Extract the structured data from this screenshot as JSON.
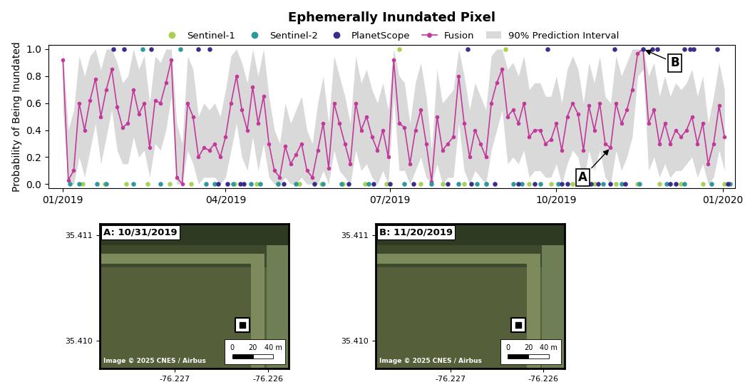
{
  "chart_data": {
    "type": "line",
    "title": "Ephemerally Inundated Pixel",
    "y_label": "Probability of Being Inundated",
    "legend": "top",
    "grid": false,
    "xlim": [
      "2018-12-24",
      "2020-01-08"
    ],
    "xticks": [
      {
        "value": "2019-01-01",
        "label": "01/2019"
      },
      {
        "value": "2019-04-01",
        "label": "04/2019"
      },
      {
        "value": "2019-07-01",
        "label": "07/2019"
      },
      {
        "value": "2019-10-01",
        "label": "10/2019"
      },
      {
        "value": "2020-01-01",
        "label": "01/2020"
      }
    ],
    "ylim": [
      -0.03,
      1.03
    ],
    "yticks": [
      {
        "value": 0.0,
        "label": "0.0"
      },
      {
        "value": 0.2,
        "label": "0.2"
      },
      {
        "value": 0.4,
        "label": "0.4"
      },
      {
        "value": 0.6,
        "label": "0.6"
      },
      {
        "value": 0.8,
        "label": "0.8"
      },
      {
        "value": 1.0,
        "label": "1.0"
      }
    ],
    "annotations": [
      {
        "text": "A",
        "x": "2019-10-31",
        "y": 0.27
      },
      {
        "text": "B",
        "x": "2019-11-18",
        "y": 1.0
      }
    ],
    "series": [
      {
        "name": "Sentinel-1",
        "type": "scatter",
        "color": "#a6d152",
        "marker": "o",
        "x": [
          "2019-01-12",
          "2019-01-24",
          "2019-02-05",
          "2019-02-17",
          "2019-03-01",
          "2019-03-13",
          "2019-04-06",
          "2019-04-18",
          "2019-04-30",
          "2019-05-12",
          "2019-05-24",
          "2019-06-05",
          "2019-06-17",
          "2019-06-29",
          "2019-07-06",
          "2019-07-18",
          "2019-07-30",
          "2019-08-11",
          "2019-08-23",
          "2019-09-03",
          "2019-09-16",
          "2019-09-28",
          "2019-10-10",
          "2019-10-22",
          "2019-11-03",
          "2019-11-15",
          "2019-11-27",
          "2019-12-09",
          "2019-12-21",
          "2020-01-02"
        ],
        "values": [
          0,
          0,
          0,
          0,
          0,
          0,
          0,
          0,
          0,
          0,
          0,
          0,
          0,
          0,
          1,
          0,
          0,
          0,
          0,
          1,
          0,
          0,
          0,
          0,
          0,
          0,
          0,
          0,
          0,
          0
        ]
      },
      {
        "name": "Sentinel-2",
        "type": "scatter",
        "color": "#2a9a9c",
        "marker": "o",
        "x": [
          "2019-01-05",
          "2019-01-10",
          "2019-01-20",
          "2019-01-25",
          "2019-02-09",
          "2019-02-14",
          "2019-02-24",
          "2019-03-07",
          "2019-03-21",
          "2019-03-26",
          "2019-04-05",
          "2019-04-15",
          "2019-04-20",
          "2019-04-30",
          "2019-05-10",
          "2019-05-25",
          "2019-06-04",
          "2019-06-19",
          "2019-07-09",
          "2019-07-24",
          "2019-08-08",
          "2019-08-18",
          "2019-08-23",
          "2019-09-07",
          "2019-09-12",
          "2019-09-22",
          "2019-10-02",
          "2019-10-17",
          "2019-10-27",
          "2019-11-06",
          "2019-11-16",
          "2019-12-01",
          "2019-12-11",
          "2019-12-26",
          "2020-01-05"
        ],
        "values": [
          0,
          0,
          0,
          0,
          0,
          1,
          0,
          1,
          0,
          0,
          0,
          0,
          0,
          0,
          0,
          0,
          0,
          0,
          0,
          0,
          0,
          0,
          0,
          0,
          0,
          0,
          0,
          0,
          0,
          0,
          0,
          0,
          0,
          0,
          0
        ]
      },
      {
        "name": "PlanetScope",
        "type": "scatter",
        "color": "#3b2d8c",
        "marker": "o",
        "x": [
          "2019-01-29",
          "2019-02-04",
          "2019-02-19",
          "2019-03-17",
          "2019-03-23",
          "2019-03-28",
          "2019-04-02",
          "2019-04-09",
          "2019-04-11",
          "2019-05-03",
          "2019-05-20",
          "2019-06-08",
          "2019-06-22",
          "2019-07-01",
          "2019-07-14",
          "2019-08-02",
          "2019-08-13",
          "2019-08-15",
          "2019-08-28",
          "2019-09-10",
          "2019-09-19",
          "2019-09-26",
          "2019-10-04",
          "2019-10-07",
          "2019-10-13",
          "2019-10-20",
          "2019-10-24",
          "2019-10-31",
          "2019-11-02",
          "2019-11-08",
          "2019-11-18",
          "2019-11-23",
          "2019-11-26",
          "2019-12-03",
          "2019-12-06",
          "2019-12-11",
          "2019-12-14",
          "2019-12-16",
          "2019-12-29",
          "2020-01-04"
        ],
        "values": [
          1,
          1,
          1,
          1,
          1,
          0,
          0,
          0,
          0,
          0,
          0,
          0,
          0,
          0,
          0,
          0,
          1,
          0,
          0,
          0,
          0,
          1,
          0,
          0,
          0,
          0,
          0,
          0,
          1,
          0,
          1,
          1,
          1,
          0,
          0,
          1,
          1,
          1,
          1,
          0
        ]
      },
      {
        "name": "Fusion",
        "type": "line",
        "color": "#c2399b",
        "marker": "o",
        "line_style": "solid",
        "x": [
          "2019-01-01",
          "2019-01-04",
          "2019-01-07",
          "2019-01-10",
          "2019-01-13",
          "2019-01-16",
          "2019-01-19",
          "2019-01-22",
          "2019-01-25",
          "2019-01-28",
          "2019-01-31",
          "2019-02-03",
          "2019-02-06",
          "2019-02-09",
          "2019-02-12",
          "2019-02-15",
          "2019-02-18",
          "2019-02-21",
          "2019-02-24",
          "2019-02-27",
          "2019-03-02",
          "2019-03-05",
          "2019-03-08",
          "2019-03-11",
          "2019-03-14",
          "2019-03-17",
          "2019-03-20",
          "2019-03-23",
          "2019-03-26",
          "2019-03-29",
          "2019-04-01",
          "2019-04-04",
          "2019-04-07",
          "2019-04-10",
          "2019-04-13",
          "2019-04-16",
          "2019-04-19",
          "2019-04-22",
          "2019-04-25",
          "2019-04-28",
          "2019-05-01",
          "2019-05-04",
          "2019-05-07",
          "2019-05-10",
          "2019-05-13",
          "2019-05-16",
          "2019-05-19",
          "2019-05-22",
          "2019-05-25",
          "2019-05-28",
          "2019-05-31",
          "2019-06-03",
          "2019-06-06",
          "2019-06-09",
          "2019-06-12",
          "2019-06-15",
          "2019-06-18",
          "2019-06-21",
          "2019-06-24",
          "2019-06-27",
          "2019-06-30",
          "2019-07-03",
          "2019-07-06",
          "2019-07-09",
          "2019-07-12",
          "2019-07-15",
          "2019-07-18",
          "2019-07-21",
          "2019-07-24",
          "2019-07-27",
          "2019-07-30",
          "2019-08-02",
          "2019-08-05",
          "2019-08-08",
          "2019-08-11",
          "2019-08-14",
          "2019-08-17",
          "2019-08-20",
          "2019-08-23",
          "2019-08-26",
          "2019-08-29",
          "2019-09-01",
          "2019-09-04",
          "2019-09-07",
          "2019-09-10",
          "2019-09-13",
          "2019-09-16",
          "2019-09-19",
          "2019-09-22",
          "2019-09-25",
          "2019-09-28",
          "2019-10-01",
          "2019-10-04",
          "2019-10-07",
          "2019-10-10",
          "2019-10-13",
          "2019-10-16",
          "2019-10-19",
          "2019-10-22",
          "2019-10-25",
          "2019-10-28",
          "2019-10-31",
          "2019-11-03",
          "2019-11-06",
          "2019-11-09",
          "2019-11-12",
          "2019-11-15",
          "2019-11-18",
          "2019-11-21",
          "2019-11-24",
          "2019-11-27",
          "2019-11-30",
          "2019-12-03",
          "2019-12-06",
          "2019-12-09",
          "2019-12-12",
          "2019-12-15",
          "2019-12-18",
          "2019-12-21",
          "2019-12-24",
          "2019-12-27",
          "2019-12-30",
          "2020-01-02"
        ],
        "values": [
          0.92,
          0.03,
          0.1,
          0.6,
          0.4,
          0.62,
          0.78,
          0.5,
          0.7,
          0.85,
          0.57,
          0.42,
          0.45,
          0.7,
          0.52,
          0.6,
          0.27,
          0.62,
          0.6,
          0.75,
          0.92,
          0.05,
          0.0,
          0.6,
          0.5,
          0.2,
          0.27,
          0.25,
          0.3,
          0.2,
          0.35,
          0.6,
          0.8,
          0.55,
          0.4,
          0.72,
          0.45,
          0.65,
          0.3,
          0.1,
          0.05,
          0.28,
          0.15,
          0.22,
          0.3,
          0.1,
          0.05,
          0.25,
          0.45,
          0.12,
          0.6,
          0.45,
          0.3,
          0.15,
          0.6,
          0.4,
          0.5,
          0.35,
          0.25,
          0.4,
          0.2,
          0.92,
          0.45,
          0.42,
          0.15,
          0.4,
          0.55,
          0.3,
          0.02,
          0.5,
          0.25,
          0.3,
          0.35,
          0.8,
          0.45,
          0.2,
          0.4,
          0.3,
          0.2,
          0.6,
          0.75,
          0.85,
          0.5,
          0.55,
          0.45,
          0.6,
          0.35,
          0.4,
          0.4,
          0.3,
          0.33,
          0.45,
          0.25,
          0.5,
          0.6,
          0.52,
          0.25,
          0.58,
          0.4,
          0.6,
          0.3,
          0.27,
          0.6,
          0.45,
          0.55,
          0.7,
          0.97,
          1.0,
          0.45,
          0.55,
          0.3,
          0.45,
          0.3,
          0.4,
          0.35,
          0.4,
          0.5,
          0.3,
          0.45,
          0.15,
          0.3,
          0.58,
          0.35
        ]
      },
      {
        "name": "90% Prediction Interval",
        "type": "band",
        "color": "#d9d9d9",
        "x": [
          "2019-01-01",
          "2019-01-04",
          "2019-01-07",
          "2019-01-10",
          "2019-01-13",
          "2019-01-16",
          "2019-01-19",
          "2019-01-22",
          "2019-01-25",
          "2019-01-28",
          "2019-01-31",
          "2019-02-03",
          "2019-02-06",
          "2019-02-09",
          "2019-02-12",
          "2019-02-15",
          "2019-02-18",
          "2019-02-21",
          "2019-02-24",
          "2019-02-27",
          "2019-03-02",
          "2019-03-05",
          "2019-03-08",
          "2019-03-11",
          "2019-03-14",
          "2019-03-17",
          "2019-03-20",
          "2019-03-23",
          "2019-03-26",
          "2019-03-29",
          "2019-04-01",
          "2019-04-04",
          "2019-04-07",
          "2019-04-10",
          "2019-04-13",
          "2019-04-16",
          "2019-04-19",
          "2019-04-22",
          "2019-04-25",
          "2019-04-28",
          "2019-05-01",
          "2019-05-04",
          "2019-05-07",
          "2019-05-10",
          "2019-05-13",
          "2019-05-16",
          "2019-05-19",
          "2019-05-22",
          "2019-05-25",
          "2019-05-28",
          "2019-05-31",
          "2019-06-03",
          "2019-06-06",
          "2019-06-09",
          "2019-06-12",
          "2019-06-15",
          "2019-06-18",
          "2019-06-21",
          "2019-06-24",
          "2019-06-27",
          "2019-06-30",
          "2019-07-03",
          "2019-07-06",
          "2019-07-09",
          "2019-07-12",
          "2019-07-15",
          "2019-07-18",
          "2019-07-21",
          "2019-07-24",
          "2019-07-27",
          "2019-07-30",
          "2019-08-02",
          "2019-08-05",
          "2019-08-08",
          "2019-08-11",
          "2019-08-14",
          "2019-08-17",
          "2019-08-20",
          "2019-08-23",
          "2019-08-26",
          "2019-08-29",
          "2019-09-01",
          "2019-09-04",
          "2019-09-07",
          "2019-09-10",
          "2019-09-13",
          "2019-09-16",
          "2019-09-19",
          "2019-09-22",
          "2019-09-25",
          "2019-09-28",
          "2019-10-01",
          "2019-10-04",
          "2019-10-07",
          "2019-10-10",
          "2019-10-13",
          "2019-10-16",
          "2019-10-19",
          "2019-10-22",
          "2019-10-25",
          "2019-10-28",
          "2019-10-31",
          "2019-11-03",
          "2019-11-06",
          "2019-11-09",
          "2019-11-12",
          "2019-11-15",
          "2019-11-18",
          "2019-11-21",
          "2019-11-24",
          "2019-11-27",
          "2019-11-30",
          "2019-12-03",
          "2019-12-06",
          "2019-12-09",
          "2019-12-12",
          "2019-12-15",
          "2019-12-18",
          "2019-12-21",
          "2019-12-24",
          "2019-12-27",
          "2019-12-30",
          "2020-01-02"
        ],
        "lower": [
          0.55,
          0.0,
          0.0,
          0.2,
          0.05,
          0.25,
          0.45,
          0.15,
          0.35,
          0.55,
          0.25,
          0.15,
          0.15,
          0.35,
          0.2,
          0.25,
          0.05,
          0.3,
          0.25,
          0.4,
          0.65,
          0.0,
          0.0,
          0.25,
          0.15,
          0.0,
          0.05,
          0.05,
          0.05,
          0.0,
          0.05,
          0.25,
          0.45,
          0.2,
          0.1,
          0.35,
          0.1,
          0.3,
          0.05,
          0.0,
          0.0,
          0.05,
          0.0,
          0.0,
          0.05,
          0.0,
          0.0,
          0.0,
          0.1,
          0.0,
          0.25,
          0.1,
          0.05,
          0.0,
          0.25,
          0.1,
          0.15,
          0.05,
          0.0,
          0.1,
          0.0,
          0.65,
          0.1,
          0.1,
          0.0,
          0.1,
          0.2,
          0.05,
          0.0,
          0.15,
          0.0,
          0.05,
          0.05,
          0.45,
          0.1,
          0.0,
          0.1,
          0.05,
          0.0,
          0.25,
          0.4,
          0.55,
          0.15,
          0.2,
          0.15,
          0.25,
          0.05,
          0.1,
          0.1,
          0.05,
          0.05,
          0.15,
          0.0,
          0.15,
          0.25,
          0.2,
          0.0,
          0.25,
          0.1,
          0.25,
          0.05,
          0.0,
          0.25,
          0.1,
          0.2,
          0.35,
          0.8,
          0.85,
          0.1,
          0.2,
          0.05,
          0.15,
          0.05,
          0.1,
          0.1,
          0.15,
          0.2,
          0.05,
          0.15,
          0.0,
          0.05,
          0.25,
          0.1
        ],
        "upper": [
          1.0,
          0.4,
          0.55,
          0.95,
          0.8,
          0.95,
          1.0,
          0.85,
          1.0,
          1.0,
          0.9,
          0.75,
          0.8,
          1.0,
          0.85,
          0.95,
          0.6,
          0.95,
          0.9,
          1.0,
          1.0,
          0.45,
          0.3,
          0.95,
          0.85,
          0.5,
          0.6,
          0.55,
          0.6,
          0.5,
          0.7,
          0.95,
          1.0,
          0.9,
          0.75,
          1.0,
          0.8,
          1.0,
          0.65,
          0.4,
          0.3,
          0.6,
          0.45,
          0.55,
          0.65,
          0.4,
          0.3,
          0.6,
          0.8,
          0.45,
          0.95,
          0.8,
          0.65,
          0.45,
          0.95,
          0.75,
          0.85,
          0.7,
          0.6,
          0.75,
          0.55,
          1.0,
          0.8,
          0.75,
          0.45,
          0.75,
          0.9,
          0.65,
          0.25,
          0.85,
          0.6,
          0.65,
          0.7,
          1.0,
          0.8,
          0.55,
          0.75,
          0.65,
          0.55,
          0.95,
          1.0,
          1.0,
          0.85,
          0.9,
          0.8,
          0.95,
          0.7,
          0.75,
          0.75,
          0.65,
          0.65,
          0.8,
          0.6,
          0.85,
          0.95,
          0.85,
          0.6,
          0.9,
          0.75,
          0.95,
          0.65,
          0.6,
          0.95,
          0.8,
          0.9,
          1.0,
          1.0,
          1.0,
          0.8,
          0.9,
          0.65,
          0.8,
          0.65,
          0.75,
          0.7,
          0.75,
          0.85,
          0.65,
          0.8,
          0.45,
          0.65,
          0.9,
          0.7
        ]
      }
    ]
  },
  "image_panels": [
    {
      "title": "A: 10/31/2019",
      "credit": "Image © 2025 CNES / Airbus",
      "xlim": [
        -76.22781,
        -76.22577
      ],
      "ylim": [
        35.40974,
        35.41111
      ],
      "xticks": [
        -76.227,
        -76.226
      ],
      "yticks": [
        {
          "value": 35.411,
          "label": "35.411"
        },
        {
          "value": 35.41,
          "label": "35.410"
        }
      ],
      "pixel": {
        "lon": -76.22627,
        "lat": 35.41015
      },
      "scale_bar": [
        {
          "value": 0,
          "label": "0"
        },
        {
          "value": 20,
          "label": "20"
        },
        {
          "value": 40,
          "label": "40 m"
        }
      ]
    },
    {
      "title": "B: 11/20/2019",
      "credit": "Image © 2025 CNES / Airbus",
      "xlim": [
        -76.22781,
        -76.22577
      ],
      "ylim": [
        35.40974,
        35.41111
      ],
      "xticks": [
        -76.227,
        -76.226
      ],
      "yticks": [
        {
          "value": 35.411,
          "label": "35.411"
        },
        {
          "value": 35.41,
          "label": "35.410"
        }
      ],
      "pixel": {
        "lon": -76.22627,
        "lat": 35.41015
      },
      "scale_bar": [
        {
          "value": 0,
          "label": "0"
        },
        {
          "value": 20,
          "label": "20"
        },
        {
          "value": 40,
          "label": "40 m"
        }
      ]
    }
  ]
}
